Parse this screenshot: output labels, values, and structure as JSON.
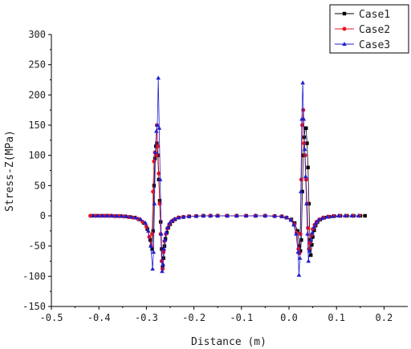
{
  "chart_data": {
    "type": "line",
    "title": "",
    "xlabel": "Distance (m)",
    "ylabel": "Stress-Z(MPa)",
    "xlim": [
      -0.5,
      0.25
    ],
    "ylim": [
      -150,
      300
    ],
    "xticks": [
      "-0.5",
      "-0.4",
      "-0.3",
      "-0.2",
      "-0.1",
      "0.0",
      "0.1",
      "0.2"
    ],
    "yticks": [
      "-150",
      "-100",
      "-50",
      "0",
      "50",
      "100",
      "150",
      "200",
      "250",
      "300"
    ],
    "grid": false,
    "legend_position": "top-right",
    "series": [
      {
        "name": "Case1",
        "color": "#000000",
        "marker": "square",
        "points": [
          [
            -0.415,
            0
          ],
          [
            -0.405,
            0
          ],
          [
            -0.395,
            0
          ],
          [
            -0.385,
            0
          ],
          [
            -0.375,
            0
          ],
          [
            -0.365,
            -0.5
          ],
          [
            -0.355,
            -0.5
          ],
          [
            -0.345,
            -1
          ],
          [
            -0.335,
            -2
          ],
          [
            -0.325,
            -3
          ],
          [
            -0.315,
            -6
          ],
          [
            -0.305,
            -12
          ],
          [
            -0.298,
            -22
          ],
          [
            -0.292,
            -40
          ],
          [
            -0.288,
            -55
          ],
          [
            -0.286,
            -25
          ],
          [
            -0.284,
            50
          ],
          [
            -0.282,
            95
          ],
          [
            -0.28,
            115
          ],
          [
            -0.278,
            120
          ],
          [
            -0.276,
            100
          ],
          [
            -0.274,
            60
          ],
          [
            -0.272,
            25
          ],
          [
            -0.27,
            -10
          ],
          [
            -0.268,
            -55
          ],
          [
            -0.266,
            -85
          ],
          [
            -0.264,
            -70
          ],
          [
            -0.262,
            -50
          ],
          [
            -0.26,
            -38
          ],
          [
            -0.257,
            -28
          ],
          [
            -0.254,
            -20
          ],
          [
            -0.25,
            -14
          ],
          [
            -0.245,
            -9
          ],
          [
            -0.24,
            -6
          ],
          [
            -0.232,
            -3
          ],
          [
            -0.222,
            -2
          ],
          [
            -0.21,
            -1
          ],
          [
            -0.195,
            -0.5
          ],
          [
            -0.18,
            0
          ],
          [
            -0.165,
            0
          ],
          [
            -0.15,
            0
          ],
          [
            -0.13,
            0
          ],
          [
            -0.11,
            0
          ],
          [
            -0.09,
            0
          ],
          [
            -0.07,
            0
          ],
          [
            -0.05,
            0
          ],
          [
            -0.03,
            -0.5
          ],
          [
            -0.015,
            -1
          ],
          [
            -0.005,
            -3
          ],
          [
            0.005,
            -6
          ],
          [
            0.012,
            -12
          ],
          [
            0.018,
            -25
          ],
          [
            0.022,
            -50
          ],
          [
            0.024,
            -58
          ],
          [
            0.026,
            -40
          ],
          [
            0.028,
            40
          ],
          [
            0.03,
            100
          ],
          [
            0.032,
            130
          ],
          [
            0.034,
            145
          ],
          [
            0.036,
            145
          ],
          [
            0.038,
            120
          ],
          [
            0.04,
            80
          ],
          [
            0.042,
            20
          ],
          [
            0.044,
            -40
          ],
          [
            0.046,
            -65
          ],
          [
            0.048,
            -48
          ],
          [
            0.05,
            -35
          ],
          [
            0.053,
            -24
          ],
          [
            0.056,
            -16
          ],
          [
            0.06,
            -10
          ],
          [
            0.066,
            -6
          ],
          [
            0.074,
            -3
          ],
          [
            0.084,
            -1.5
          ],
          [
            0.095,
            -0.5
          ],
          [
            0.108,
            0
          ],
          [
            0.122,
            0
          ],
          [
            0.136,
            0
          ],
          [
            0.15,
            0
          ],
          [
            0.16,
            0
          ]
        ]
      },
      {
        "name": "Case2",
        "color": "#e8141e",
        "marker": "circle",
        "points": [
          [
            -0.418,
            0
          ],
          [
            -0.408,
            0
          ],
          [
            -0.398,
            0
          ],
          [
            -0.388,
            0
          ],
          [
            -0.378,
            0
          ],
          [
            -0.368,
            -0.5
          ],
          [
            -0.358,
            -0.5
          ],
          [
            -0.348,
            -1
          ],
          [
            -0.338,
            -2
          ],
          [
            -0.328,
            -3
          ],
          [
            -0.318,
            -5
          ],
          [
            -0.308,
            -10
          ],
          [
            -0.3,
            -18
          ],
          [
            -0.294,
            -35
          ],
          [
            -0.29,
            -50
          ],
          [
            -0.288,
            -30
          ],
          [
            -0.286,
            40
          ],
          [
            -0.284,
            90
          ],
          [
            -0.282,
            105
          ],
          [
            -0.28,
            100
          ],
          [
            -0.278,
            150
          ],
          [
            -0.276,
            115
          ],
          [
            -0.274,
            70
          ],
          [
            -0.272,
            20
          ],
          [
            -0.27,
            -30
          ],
          [
            -0.268,
            -75
          ],
          [
            -0.266,
            -88
          ],
          [
            -0.264,
            -60
          ],
          [
            -0.262,
            -42
          ],
          [
            -0.259,
            -30
          ],
          [
            -0.256,
            -21
          ],
          [
            -0.252,
            -14
          ],
          [
            -0.247,
            -9
          ],
          [
            -0.241,
            -6
          ],
          [
            -0.233,
            -3
          ],
          [
            -0.223,
            -2
          ],
          [
            -0.211,
            -1
          ],
          [
            -0.196,
            -0.5
          ],
          [
            -0.181,
            0
          ],
          [
            -0.166,
            0
          ],
          [
            -0.151,
            0
          ],
          [
            -0.131,
            0
          ],
          [
            -0.111,
            0
          ],
          [
            -0.091,
            0
          ],
          [
            -0.071,
            0
          ],
          [
            -0.051,
            0
          ],
          [
            -0.031,
            -0.5
          ],
          [
            -0.016,
            -1
          ],
          [
            -0.006,
            -3
          ],
          [
            0.004,
            -7
          ],
          [
            0.011,
            -14
          ],
          [
            0.016,
            -28
          ],
          [
            0.02,
            -55
          ],
          [
            0.022,
            -62
          ],
          [
            0.024,
            -30
          ],
          [
            0.026,
            60
          ],
          [
            0.028,
            150
          ],
          [
            0.03,
            175
          ],
          [
            0.032,
            120
          ],
          [
            0.034,
            100
          ],
          [
            0.036,
            60
          ],
          [
            0.038,
            20
          ],
          [
            0.04,
            -20
          ],
          [
            0.042,
            -55
          ],
          [
            0.044,
            -45
          ],
          [
            0.047,
            -32
          ],
          [
            0.05,
            -22
          ],
          [
            0.054,
            -15
          ],
          [
            0.058,
            -10
          ],
          [
            0.064,
            -6
          ],
          [
            0.072,
            -3
          ],
          [
            0.082,
            -1.5
          ],
          [
            0.093,
            -0.5
          ],
          [
            0.106,
            0
          ],
          [
            0.12,
            0
          ],
          [
            0.134,
            0
          ],
          [
            0.148,
            0
          ]
        ]
      },
      {
        "name": "Case3",
        "color": "#1f1fcf",
        "marker": "triangle",
        "points": [
          [
            -0.412,
            0
          ],
          [
            -0.402,
            0
          ],
          [
            -0.392,
            0
          ],
          [
            -0.382,
            0
          ],
          [
            -0.372,
            0
          ],
          [
            -0.362,
            -0.5
          ],
          [
            -0.352,
            -0.5
          ],
          [
            -0.342,
            -1
          ],
          [
            -0.332,
            -2
          ],
          [
            -0.322,
            -3
          ],
          [
            -0.312,
            -6
          ],
          [
            -0.302,
            -12
          ],
          [
            -0.296,
            -25
          ],
          [
            -0.291,
            -50
          ],
          [
            -0.287,
            -88
          ],
          [
            -0.285,
            -60
          ],
          [
            -0.283,
            20
          ],
          [
            -0.281,
            105
          ],
          [
            -0.279,
            140
          ],
          [
            -0.277,
            150
          ],
          [
            -0.275,
            228
          ],
          [
            -0.273,
            145
          ],
          [
            -0.271,
            60
          ],
          [
            -0.269,
            -30
          ],
          [
            -0.267,
            -92
          ],
          [
            -0.265,
            -80
          ],
          [
            -0.263,
            -55
          ],
          [
            -0.261,
            -40
          ],
          [
            -0.258,
            -28
          ],
          [
            -0.255,
            -19
          ],
          [
            -0.251,
            -12
          ],
          [
            -0.246,
            -8
          ],
          [
            -0.24,
            -5
          ],
          [
            -0.232,
            -3
          ],
          [
            -0.222,
            -2
          ],
          [
            -0.21,
            -1
          ],
          [
            -0.195,
            -0.5
          ],
          [
            -0.18,
            0
          ],
          [
            -0.165,
            0
          ],
          [
            -0.15,
            0
          ],
          [
            -0.13,
            0
          ],
          [
            -0.11,
            0
          ],
          [
            -0.09,
            0
          ],
          [
            -0.07,
            0
          ],
          [
            -0.05,
            0
          ],
          [
            -0.03,
            -0.5
          ],
          [
            -0.015,
            -1
          ],
          [
            -0.005,
            -3
          ],
          [
            0.004,
            -7
          ],
          [
            0.01,
            -15
          ],
          [
            0.015,
            -30
          ],
          [
            0.019,
            -60
          ],
          [
            0.021,
            -98
          ],
          [
            0.023,
            -70
          ],
          [
            0.025,
            40
          ],
          [
            0.027,
            160
          ],
          [
            0.029,
            220
          ],
          [
            0.031,
            160
          ],
          [
            0.033,
            110
          ],
          [
            0.035,
            65
          ],
          [
            0.037,
            20
          ],
          [
            0.039,
            -30
          ],
          [
            0.041,
            -75
          ],
          [
            0.043,
            -58
          ],
          [
            0.046,
            -40
          ],
          [
            0.049,
            -28
          ],
          [
            0.053,
            -18
          ],
          [
            0.057,
            -12
          ],
          [
            0.062,
            -7
          ],
          [
            0.07,
            -4
          ],
          [
            0.08,
            -2
          ],
          [
            0.091,
            -1
          ],
          [
            0.104,
            0
          ],
          [
            0.118,
            0
          ],
          [
            0.132,
            0
          ],
          [
            0.146,
            0
          ]
        ]
      }
    ]
  }
}
